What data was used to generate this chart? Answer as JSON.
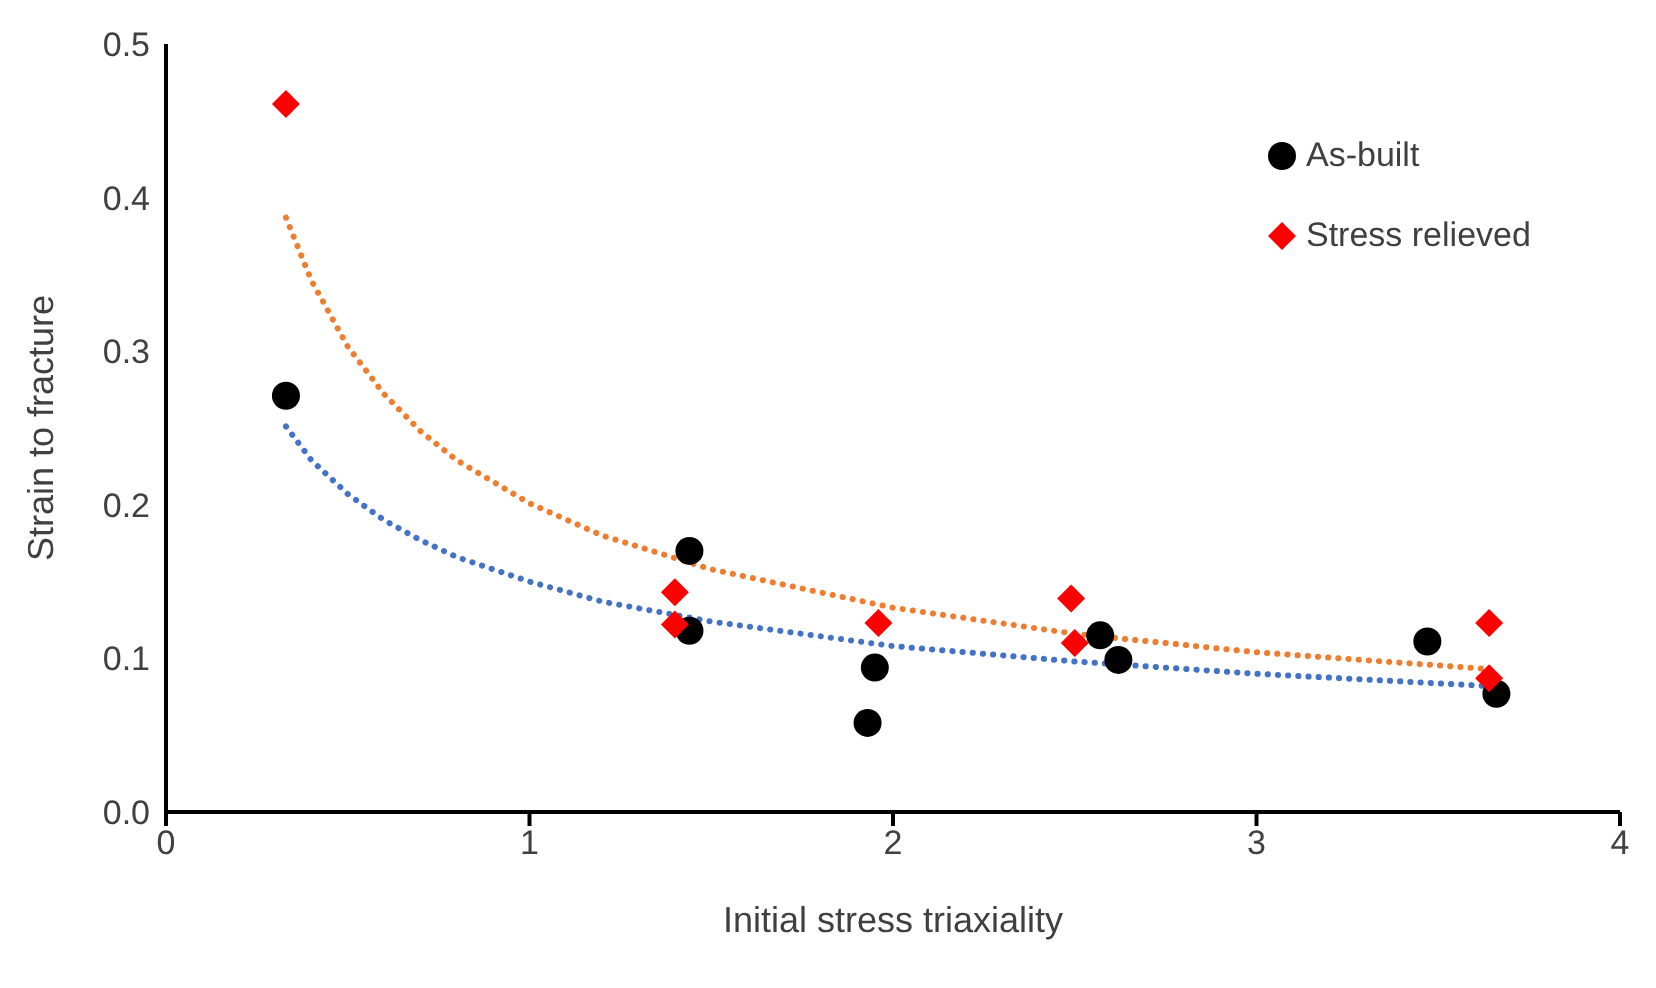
{
  "chart_data": {
    "type": "scatter",
    "xlabel": "Initial stress triaxiality",
    "ylabel": "Strain to fracture",
    "xlim": [
      0,
      4
    ],
    "xticks": [
      0,
      1,
      2,
      3,
      4
    ],
    "ylim": [
      0,
      0.5
    ],
    "yticks": [
      {
        "value": 0,
        "label": "0.0"
      },
      0.1,
      0.2,
      0.3,
      0.4,
      0.5
    ],
    "grid": false,
    "legend": "top right",
    "series": [
      {
        "name": "As-built",
        "marker": "circle",
        "color": "#000000",
        "x": [
          0.33,
          1.44,
          1.44,
          1.95,
          1.93,
          2.57,
          2.62,
          3.47,
          3.66
        ],
        "values": [
          0.271,
          0.17,
          0.118,
          0.094,
          0.058,
          0.115,
          0.099,
          0.111,
          0.077
        ]
      },
      {
        "name": "Stress relieved",
        "marker": "diamond",
        "color": "#ff0000",
        "x": [
          0.33,
          1.4,
          1.4,
          1.96,
          2.49,
          2.5,
          3.64,
          3.64
        ],
        "values": [
          0.461,
          0.143,
          0.122,
          0.123,
          0.139,
          0.11,
          0.123,
          0.087
        ]
      },
      {
        "type": "line",
        "marker": "none",
        "line_style": "dotted",
        "color": "#4472c4",
        "x": [
          0.33,
          0.4,
          0.5,
          0.6,
          0.7,
          0.8,
          1,
          1.2,
          1.5,
          2,
          2.5,
          3,
          3.64
        ],
        "values": [
          0.251,
          0.229,
          0.207,
          0.19,
          0.177,
          0.166,
          0.15,
          0.137,
          0.124,
          0.108,
          0.098,
          0.09,
          0.082
        ]
      },
      {
        "type": "line",
        "marker": "none",
        "line_style": "dotted",
        "color": "#ed7d31",
        "x": [
          0.33,
          0.4,
          0.5,
          0.6,
          0.7,
          0.8,
          1,
          1.2,
          1.5,
          2,
          2.5,
          3,
          3.64
        ],
        "values": [
          0.387,
          0.346,
          0.303,
          0.272,
          0.248,
          0.229,
          0.201,
          0.18,
          0.158,
          0.133,
          0.116,
          0.104,
          0.093
        ]
      }
    ]
  }
}
